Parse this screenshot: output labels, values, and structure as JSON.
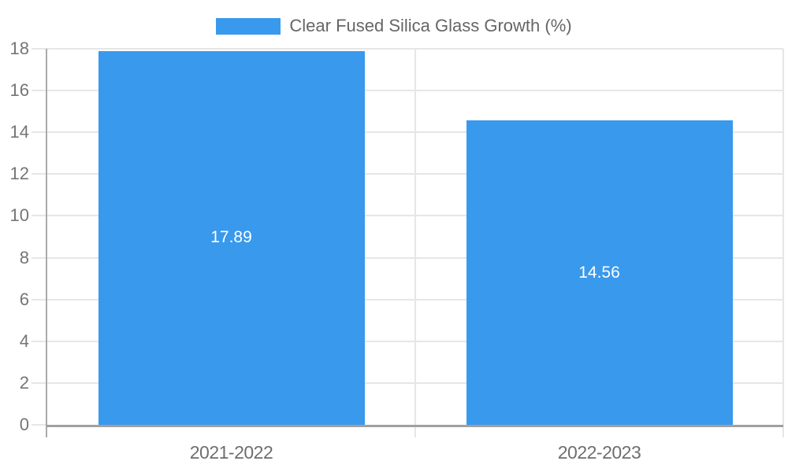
{
  "legend": {
    "label": "Clear Fused Silica Glass Growth (%)"
  },
  "chart_data": {
    "type": "bar",
    "title": "",
    "categories": [
      "2021-2022",
      "2022-2023"
    ],
    "series": [
      {
        "name": "Clear Fused Silica Glass Growth (%)",
        "values": [
          17.89,
          14.56
        ]
      }
    ],
    "value_labels": [
      "17.89",
      "14.56"
    ],
    "xlabel": "",
    "ylabel": "",
    "ylim": [
      0,
      18
    ],
    "yticks": [
      0,
      2,
      4,
      6,
      8,
      10,
      12,
      14,
      16,
      18
    ],
    "grid": true,
    "legend_position": "top-center",
    "colors": {
      "bar": "#3999ec",
      "gridline": "#e6e6e6",
      "y_axis_line": "#aaaaaa",
      "x_axis_line": "#a0a0a0",
      "ytick_label": "#757575",
      "xtick_label": "#6e6e6e",
      "legend_text": "#666666",
      "value_label": "#ffffff",
      "background": "#ffffff"
    }
  }
}
